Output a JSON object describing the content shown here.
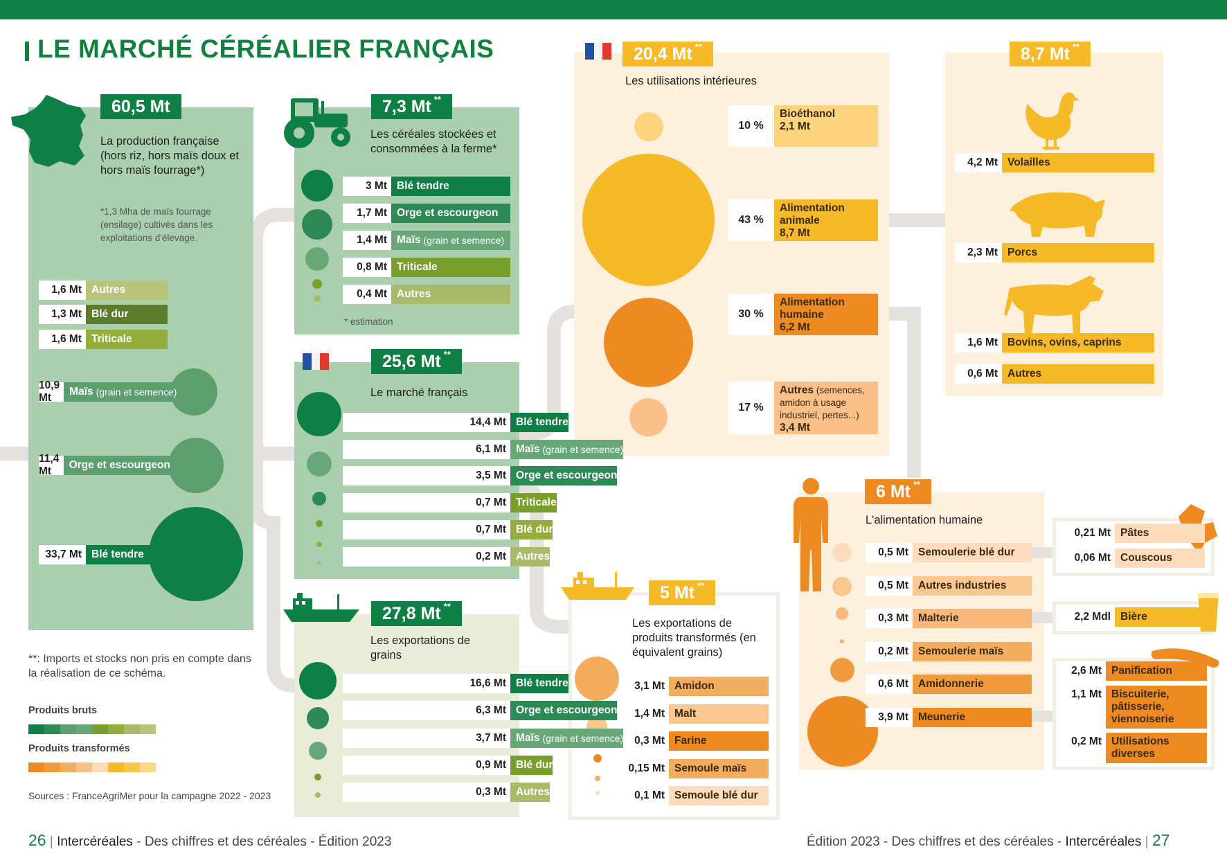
{
  "title": "LE MARCHÉ CÉRÉALIER FRANÇAIS",
  "colors": {
    "green_dark": "#0e7f45",
    "green_panel": "#a9cfae",
    "orange": "#ee8a22",
    "yellow": "#f6b928",
    "cream": "#fdf0dd"
  },
  "production": {
    "value": "60,5 Mt",
    "text": "La production française (hors riz, hors maïs doux et hors maïs fourrage*)",
    "note": "*1,3 Mha de maïs fourrage (ensilage) cultivés dans les exploitations d'élevage.",
    "rows": [
      {
        "value": "1,6 Mt",
        "label": "Autres",
        "color": "#b9c37a"
      },
      {
        "value": "1,3 Mt",
        "label": "Blé dur",
        "color": "#5c7c2c"
      },
      {
        "value": "1,6 Mt",
        "label": "Triticale",
        "color": "#93ae3d"
      },
      {
        "value": "10,9 Mt",
        "label": "Maïs",
        "label_small": "(grain et semence)",
        "color": "#5c9e6e"
      },
      {
        "value": "11,4 Mt",
        "label": "Orge et escourgeon",
        "color": "#5c9e6e"
      },
      {
        "value": "33,7 Mt",
        "label": "Blé tendre",
        "color": "#0e7f45"
      }
    ]
  },
  "farm": {
    "value": "7,3 Mt",
    "stars": "**",
    "text": "Les céréales stockées et consommées à la ferme*",
    "note": "* estimation",
    "rows": [
      {
        "value": "3 Mt",
        "label": "Blé tendre",
        "color": "#0e7f45"
      },
      {
        "value": "1,7 Mt",
        "label": "Orge et escourgeon",
        "color": "#2e8a55"
      },
      {
        "value": "1,4 Mt",
        "label": "Maïs",
        "label_small": "(grain et semence)",
        "color": "#68a878"
      },
      {
        "value": "0,8 Mt",
        "label": "Triticale",
        "color": "#789f2b"
      },
      {
        "value": "0,4 Mt",
        "label": "Autres",
        "color": "#a9bb6a"
      }
    ]
  },
  "market": {
    "value": "25,6 Mt",
    "stars": "**",
    "text": "Le marché français",
    "rows": [
      {
        "value": "14,4 Mt",
        "label": "Blé tendre",
        "color": "#0e7f45"
      },
      {
        "value": "6,1 Mt",
        "label": "Maïs",
        "label_small": "(grain et semence)",
        "color": "#68a878"
      },
      {
        "value": "3,5 Mt",
        "label": "Orge et escourgeon",
        "color": "#2e8a55"
      },
      {
        "value": "0,7 Mt",
        "label": "Triticale",
        "color": "#789f2b"
      },
      {
        "value": "0,7 Mt",
        "label": "Blé dur",
        "color": "#93ae3d"
      },
      {
        "value": "0,2 Mt",
        "label": "Autres",
        "color": "#a9bb6a"
      }
    ]
  },
  "exports_grains": {
    "value": "27,8 Mt",
    "stars": "**",
    "text": "Les exportations de grains",
    "rows": [
      {
        "value": "16,6 Mt",
        "label": "Blé tendre",
        "color": "#0e7f45"
      },
      {
        "value": "6,3 Mt",
        "label": "Orge et escourgeon",
        "color": "#2e8a55"
      },
      {
        "value": "3,7 Mt",
        "label": "Maïs",
        "label_small": "(grain et semence)",
        "color": "#68a878"
      },
      {
        "value": "0,9 Mt",
        "label": "Blé dur",
        "color": "#789f2b"
      },
      {
        "value": "0,3 Mt",
        "label": "Autres",
        "color": "#a9bb6a"
      }
    ]
  },
  "footnote": "**: Imports et stocks non pris en compte dans la réalisation de ce schéma.",
  "legend": {
    "raw": "Produits bruts",
    "processed": "Produits transformés",
    "raw_colors": [
      "#0e7f45",
      "#2e8a55",
      "#5c9e6e",
      "#68a878",
      "#789f2b",
      "#93ae3d",
      "#a9bb6a",
      "#b9c37a"
    ],
    "processed_colors": [
      "#ee8a22",
      "#f19a3e",
      "#f4ac5e",
      "#f7c28a",
      "#fbdcb8",
      "#f6b928",
      "#f9c74e",
      "#fcd98a"
    ]
  },
  "sources": "Sources : FranceAgriMer pour la campagne 2022 - 2023",
  "interior": {
    "value": "20,4 Mt",
    "stars": "**",
    "text": "Les utilisations intérieures",
    "items": [
      {
        "pct": "10 %",
        "label": "Bioéthanol",
        "sub": "",
        "amount": "2,1 Mt",
        "color": "#fdd47e"
      },
      {
        "pct": "43 %",
        "label": "Alimentation animale",
        "sub": "",
        "amount": "8,7 Mt",
        "color": "#f6b928"
      },
      {
        "pct": "30 %",
        "label": "Alimentation humaine",
        "sub": "",
        "amount": "6,2 Mt",
        "color": "#ee8a22"
      },
      {
        "pct": "17 %",
        "label": "Autres",
        "sub": "(semences, amidon à usage industriel, pertes...)",
        "amount": "3,4 Mt",
        "color": "#f9c08a"
      }
    ]
  },
  "animal": {
    "value": "8,7 Mt",
    "stars": "**",
    "rows": [
      {
        "value": "4,2 Mt",
        "label": "Volailles"
      },
      {
        "value": "2,3 Mt",
        "label": "Porcs"
      },
      {
        "value": "1,6 Mt",
        "label": "Bovins, ovins, caprins"
      },
      {
        "value": "0,6 Mt",
        "label": "Autres"
      }
    ]
  },
  "exports_processed": {
    "value": "5 Mt",
    "stars": "**",
    "text": "Les exportations de produits transformés (en équivalent grains)",
    "rows": [
      {
        "value": "3,1 Mt",
        "label": "Amidon",
        "color": "#f4ac5e"
      },
      {
        "value": "1,4 Mt",
        "label": "Malt",
        "color": "#f9c890"
      },
      {
        "value": "0,3 Mt",
        "label": "Farine",
        "color": "#ee8a22"
      },
      {
        "value": "0,15 Mt",
        "label": "Semoule maïs",
        "color": "#f4ac5e"
      },
      {
        "value": "0,1 Mt",
        "label": "Semoule blé dur",
        "color": "#fcdcbc"
      }
    ]
  },
  "human": {
    "value": "6 Mt",
    "stars": "**",
    "text": "L'alimentation humaine",
    "rows": [
      {
        "value": "0,5 Mt",
        "label": "Semoulerie blé dur",
        "color": "#fcdcbc"
      },
      {
        "value": "0,5 Mt",
        "label": "Autres industries",
        "color": "#f9c890"
      },
      {
        "value": "0,3 Mt",
        "label": "Malterie",
        "color": "#f7b87a"
      },
      {
        "value": "0,2 Mt",
        "label": "Semoulerie maïs",
        "color": "#f4ac5e"
      },
      {
        "value": "0,6 Mt",
        "label": "Amidonnerie",
        "color": "#f19a3e"
      },
      {
        "value": "3,9 Mt",
        "label": "Meunerie",
        "color": "#ee8a22"
      }
    ],
    "pasta": [
      {
        "value": "0,21 Mt",
        "label": "Pâtes"
      },
      {
        "value": "0,06 Mt",
        "label": "Couscous"
      }
    ],
    "beer": {
      "value": "2,2 Mdl",
      "label": "Bière"
    },
    "flour": [
      {
        "value": "2,6 Mt",
        "label": "Panification"
      },
      {
        "value": "1,1 Mt",
        "label": "Biscuiterie, pâtisserie, viennoiserie"
      },
      {
        "value": "0,2 Mt",
        "label": "Utilisations diverses"
      }
    ]
  },
  "footer": {
    "left_page": "26",
    "left_brand": "Intercéréales",
    "left_text": "- Des chiffres et des céréales - Édition 2023",
    "right_text": "Édition 2023 - Des chiffres et des céréales -",
    "right_brand": "Intercéréales",
    "right_page": "27"
  }
}
